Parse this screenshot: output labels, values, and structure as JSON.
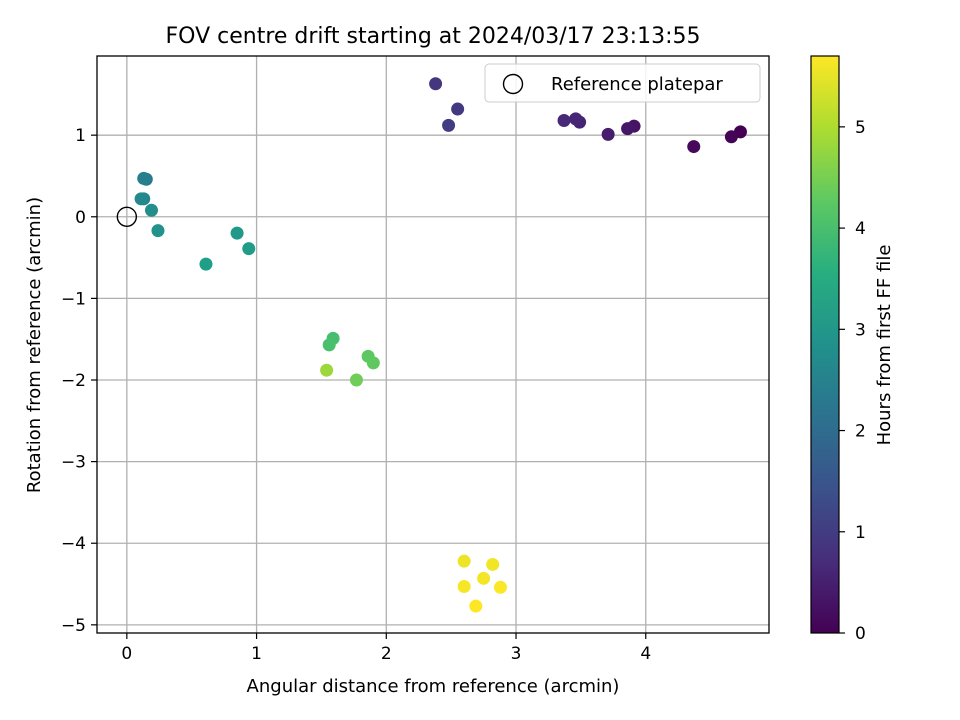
{
  "chart_data": {
    "type": "scatter",
    "title": "FOV centre drift starting at 2024/03/17 23:13:55",
    "xlabel": "Angular distance from reference (arcmin)",
    "ylabel": "Rotation from reference (arcmin)",
    "xlim": [
      -0.23,
      4.95
    ],
    "ylim": [
      -5.1,
      1.97
    ],
    "xticks": [
      0,
      1,
      2,
      3,
      4
    ],
    "yticks": [
      -5,
      -4,
      -3,
      -2,
      -1,
      0,
      1
    ],
    "grid": true,
    "legend": {
      "placement": "top-right",
      "entries": [
        "Reference platepar"
      ]
    },
    "reference_point": {
      "x": 0,
      "y": 0,
      "label": "Reference platepar"
    },
    "colorbar": {
      "label": "Hours from first FF file",
      "colormap": "viridis",
      "range": [
        0,
        5.7
      ],
      "ticks": [
        0,
        1,
        2,
        3,
        4,
        5
      ]
    },
    "series": [
      {
        "points": [
          {
            "x": 4.73,
            "y": 1.04,
            "c": 0.0
          },
          {
            "x": 4.66,
            "y": 0.98,
            "c": 0.05
          },
          {
            "x": 4.37,
            "y": 0.86,
            "c": 0.12
          },
          {
            "x": 3.91,
            "y": 1.11,
            "c": 0.3
          },
          {
            "x": 3.86,
            "y": 1.08,
            "c": 0.35
          },
          {
            "x": 3.71,
            "y": 1.01,
            "c": 0.45
          },
          {
            "x": 3.49,
            "y": 1.16,
            "c": 0.55
          },
          {
            "x": 3.46,
            "y": 1.2,
            "c": 0.6
          },
          {
            "x": 3.37,
            "y": 1.18,
            "c": 0.65
          },
          {
            "x": 2.38,
            "y": 1.63,
            "c": 0.9
          },
          {
            "x": 2.55,
            "y": 1.32,
            "c": 0.95
          },
          {
            "x": 2.48,
            "y": 1.12,
            "c": 1.0
          },
          {
            "x": 0.15,
            "y": 0.46,
            "c": 2.35
          },
          {
            "x": 0.13,
            "y": 0.47,
            "c": 2.45
          },
          {
            "x": 0.13,
            "y": 0.22,
            "c": 2.6
          },
          {
            "x": 0.11,
            "y": 0.22,
            "c": 2.7
          },
          {
            "x": 0.19,
            "y": 0.08,
            "c": 2.8
          },
          {
            "x": 0.24,
            "y": -0.17,
            "c": 2.9
          },
          {
            "x": 0.85,
            "y": -0.2,
            "c": 3.05
          },
          {
            "x": 0.94,
            "y": -0.39,
            "c": 3.15
          },
          {
            "x": 0.61,
            "y": -0.58,
            "c": 3.2
          },
          {
            "x": 1.59,
            "y": -1.49,
            "c": 4.0
          },
          {
            "x": 1.56,
            "y": -1.57,
            "c": 4.05
          },
          {
            "x": 1.86,
            "y": -1.71,
            "c": 4.25
          },
          {
            "x": 1.9,
            "y": -1.79,
            "c": 4.3
          },
          {
            "x": 1.77,
            "y": -2.0,
            "c": 4.45
          },
          {
            "x": 1.54,
            "y": -1.88,
            "c": 4.85
          },
          {
            "x": 2.6,
            "y": -4.22,
            "c": 5.55
          },
          {
            "x": 2.82,
            "y": -4.26,
            "c": 5.6
          },
          {
            "x": 2.75,
            "y": -4.43,
            "c": 5.62
          },
          {
            "x": 2.6,
            "y": -4.53,
            "c": 5.65
          },
          {
            "x": 2.88,
            "y": -4.54,
            "c": 5.67
          },
          {
            "x": 2.69,
            "y": -4.77,
            "c": 5.7
          }
        ]
      }
    ]
  }
}
